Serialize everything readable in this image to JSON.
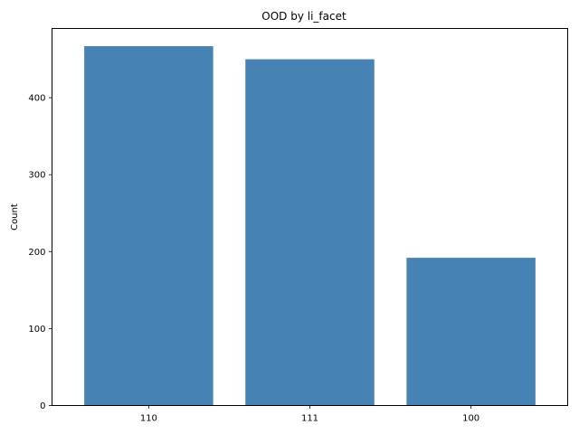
{
  "chart_data": {
    "type": "bar",
    "title": "OOD by li_facet",
    "xlabel": "",
    "ylabel": "Count",
    "categories": [
      "110",
      "111",
      "100"
    ],
    "values": [
      467,
      450,
      192
    ],
    "ylim": [
      0,
      490
    ],
    "yticks": [
      0,
      100,
      200,
      300,
      400
    ],
    "grid": false,
    "bar_color": "#4682b4"
  }
}
